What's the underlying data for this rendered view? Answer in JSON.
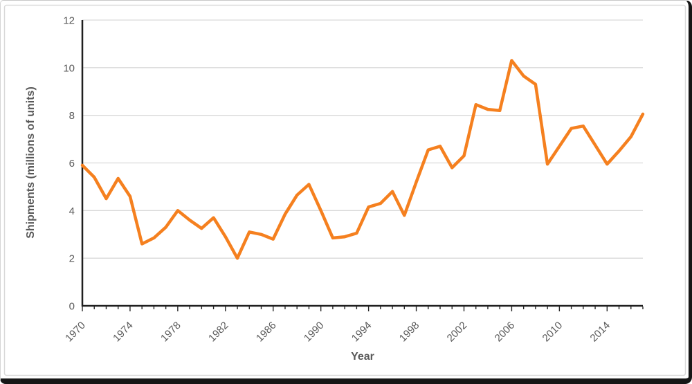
{
  "chart_data": {
    "type": "line",
    "title": "",
    "xlabel": "Year",
    "ylabel": "Shipments (millions of units)",
    "series_name": "Shipments (millions of units)",
    "x": [
      1970,
      1971,
      1972,
      1973,
      1974,
      1975,
      1976,
      1977,
      1978,
      1979,
      1980,
      1981,
      1982,
      1983,
      1984,
      1985,
      1986,
      1987,
      1988,
      1989,
      1990,
      1991,
      1992,
      1993,
      1994,
      1995,
      1996,
      1997,
      1998,
      1999,
      2000,
      2001,
      2002,
      2003,
      2004,
      2005,
      2006,
      2007,
      2008,
      2009,
      2010,
      2011,
      2012,
      2013,
      2014,
      2015,
      2016,
      2017
    ],
    "values": [
      5.9,
      5.4,
      4.5,
      5.35,
      4.6,
      2.6,
      2.85,
      3.3,
      4.0,
      3.6,
      3.25,
      3.7,
      2.9,
      2.0,
      3.1,
      3.0,
      2.8,
      3.85,
      4.65,
      5.1,
      4.0,
      2.85,
      2.9,
      3.05,
      4.15,
      4.3,
      4.8,
      3.8,
      5.2,
      6.55,
      6.7,
      5.8,
      6.3,
      8.45,
      8.25,
      8.2,
      10.3,
      9.65,
      9.3,
      5.95,
      6.7,
      7.45,
      7.55,
      6.75,
      5.95,
      6.5,
      7.1,
      8.05
    ],
    "xlim": [
      1970,
      2017
    ],
    "ylim": [
      0,
      12
    ],
    "yticks": [
      0,
      2,
      4,
      6,
      8,
      10,
      12
    ],
    "xtick_label_years": [
      1970,
      1974,
      1978,
      1982,
      1986,
      1990,
      1994,
      1998,
      2002,
      2006,
      2010,
      2014
    ],
    "xtick_minor_step": 1,
    "grid": "horizontal",
    "legend": "none",
    "xtick_label_rotation_deg": 45,
    "colors": {
      "line": "#f5801f",
      "gridline": "#d9d9d9",
      "axis": "#1f1f1f",
      "tick": "#262626",
      "tick_label": "#595959",
      "axis_title": "#595959",
      "chart_border": "#d9d9d9",
      "background": "#ffffff",
      "screen_edge": "#161616"
    }
  }
}
